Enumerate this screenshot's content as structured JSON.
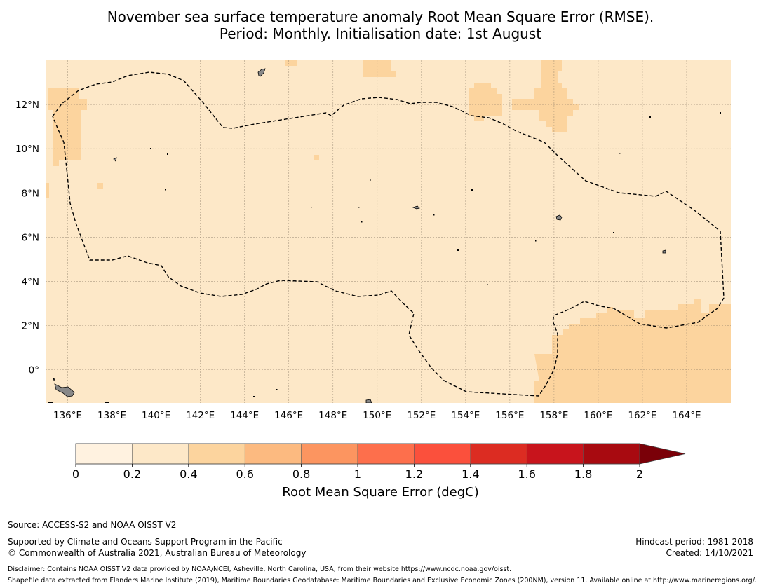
{
  "title": {
    "line1": "November sea surface temperature anomaly Root Mean Square Error (RMSE).",
    "line2": "Period: Monthly. Initialisation date: 1st August"
  },
  "map": {
    "lon_range": [
      135.0,
      166.0
    ],
    "lat_range": [
      -1.5,
      14.0
    ],
    "x_ticks": [
      "136°E",
      "138°E",
      "140°E",
      "142°E",
      "144°E",
      "146°E",
      "148°E",
      "150°E",
      "152°E",
      "154°E",
      "156°E",
      "158°E",
      "160°E",
      "162°E",
      "164°E"
    ],
    "y_ticks": [
      "0°",
      "2°N",
      "4°N",
      "6°N",
      "8°N",
      "10°N",
      "12°N"
    ],
    "grid": "on",
    "background_color": "#fde8c8",
    "higher_rmse_color": "#fcd49e",
    "boundary_style": "dashed",
    "boundary_name": "",
    "high_rmse_areas": "patches near 136°E 10–12°N, 150°E 13°N, 154–159°E 11–13°N, and 157–166°E south of 3°N"
  },
  "colorbar": {
    "label": "Root Mean Square Error (degC)",
    "ticks": [
      "0",
      "0.2",
      "0.4",
      "0.6",
      "0.8",
      "1",
      "1.2",
      "1.4",
      "1.6",
      "1.8",
      "2"
    ],
    "colors": [
      "#fff2e0",
      "#fde8c8",
      "#fcd49e",
      "#fcba80",
      "#fc9560",
      "#fd6f4c",
      "#fb503c",
      "#dc2c22",
      "#c8141c",
      "#a80a10",
      "#7a0008"
    ],
    "extend": "max"
  },
  "footer": {
    "source": "Source: ACCESS-S2 and NOAA OISST V2",
    "supported": "Supported by Climate and Oceans Support Program in the Pacific",
    "copyright": "© Commonwealth of Australia 2021, Australian Bureau of Meteorology",
    "hindcast": "Hindcast period: 1981-2018",
    "created": "Created: 14/10/2021",
    "disclaimer": "Disclaimer: Contains NOAA OISST V2 data provided by NOAA/NCEI, Asheville, North Carolina, USA, from their website https://www.ncdc.noaa.gov/oisst.",
    "shapefile": "Shapefile data extracted from Flanders Marine Institute (2019), Maritime Boundaries Geodatabase: Maritime Boundaries and Exclusive Economic Zones (200NM), version 11. Available online at http://www.marineregions.org/."
  }
}
